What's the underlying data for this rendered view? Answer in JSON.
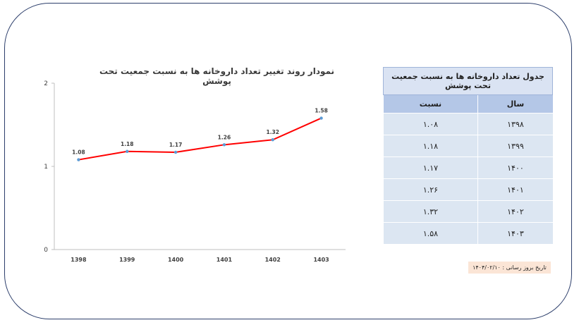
{
  "chart_data": {
    "type": "line",
    "title": "نمودار روند تغییر تعداد داروخانه ها به نسبت جمعیت تحت پوشش",
    "categories": [
      "1398",
      "1399",
      "1400",
      "1401",
      "1402",
      "1403"
    ],
    "series": [
      {
        "values": [
          1.08,
          1.18,
          1.17,
          1.26,
          1.32,
          1.58
        ],
        "labels": [
          "1.08",
          "1.18",
          "1.17",
          "1.26",
          "1.32",
          "1.58"
        ]
      }
    ],
    "ylim": [
      0,
      2
    ],
    "yticks": [
      "0",
      "1",
      "2"
    ],
    "grid": false,
    "line_color": "#ff0000",
    "marker_color": "#5b9bd5"
  },
  "table": {
    "title": "جدول تعداد داروخانه ها به نسبت جمعیت تحت پوشش",
    "headers": {
      "year": "سال",
      "ratio": "نسبت"
    },
    "rows": [
      {
        "year": "۱۳۹۸",
        "ratio": "۱.۰۸"
      },
      {
        "year": "۱۳۹۹",
        "ratio": "۱.۱۸"
      },
      {
        "year": "۱۴۰۰",
        "ratio": "۱.۱۷"
      },
      {
        "year": "۱۴۰۱",
        "ratio": "۱.۲۶"
      },
      {
        "year": "۱۴۰۲",
        "ratio": "۱.۳۲"
      },
      {
        "year": "۱۴۰۳",
        "ratio": "۱.۵۸"
      }
    ]
  },
  "update_note": "تاریخ بروز رسانی : ۱۴۰۴/۰۲/۱۰"
}
